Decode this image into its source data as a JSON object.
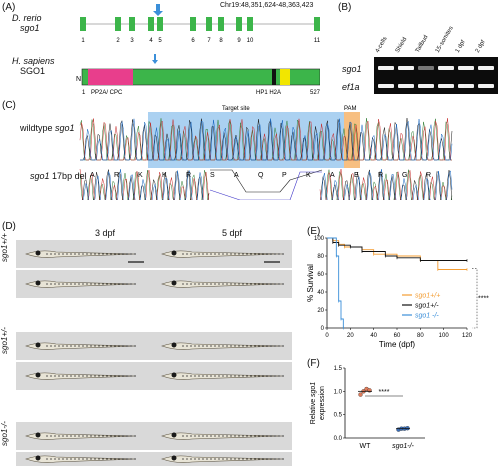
{
  "panels": {
    "A": "(A)",
    "B": "(B)",
    "C": "(C)",
    "D": "(D)",
    "E": "(E)",
    "F": "(F)"
  },
  "panelA": {
    "species1": "D. rerio",
    "gene1": "sgo1",
    "chr": "Chr19:48,351,624-48,363,423",
    "exons": [
      "1",
      "2",
      "3",
      "4",
      "5",
      "6",
      "7",
      "8",
      "9",
      "10",
      "11"
    ],
    "species2": "H. sapiens",
    "gene2": "SGO1",
    "protein_start": "N",
    "protein_end": "C",
    "pos_start": "1",
    "pos_end": "527",
    "domain1": "PP2A/ CPC",
    "domain2": "HP1 H2A",
    "colors": {
      "exon": "#3cb54a",
      "pp2a": "#e83e8c",
      "hp1": "#111111",
      "h2a": "#f2e600",
      "arrow": "#3b8fd9"
    }
  },
  "panelB": {
    "lanes": [
      "4-cells",
      "Shield",
      "Tailbud",
      "15-somites",
      "1 dpf",
      "2 dpf"
    ],
    "rows": [
      "sgo1",
      "ef1a"
    ]
  },
  "panelC": {
    "target_site": "Target site",
    "pam": "PAM",
    "wt_label": "wildtype",
    "wt_gene": "sgo1",
    "mut_gene": "sgo1",
    "mut_label": "17bp del",
    "wt_aa": [
      "A",
      "R",
      "K",
      "K",
      "R",
      "S",
      "A",
      "Q",
      "P",
      "K",
      "A",
      "E",
      "R",
      "G",
      "R"
    ],
    "mut_aa": [
      "A",
      "R",
      "K",
      "K",
      "S",
      "G",
      "A",
      "R",
      "P",
      "Q"
    ]
  },
  "panelD": {
    "col1": "3 dpf",
    "col2": "5 dpf",
    "genotypes": [
      "sgo1+/+",
      "sgo1+/-",
      "sgo1-/-"
    ]
  },
  "chart_data": [
    {
      "type": "line",
      "panel": "E",
      "xlabel": "Time (dpf)",
      "ylabel": "% Survival",
      "xlim": [
        0,
        120
      ],
      "ylim": [
        0,
        100
      ],
      "xticks": [
        0,
        20,
        40,
        60,
        80,
        100,
        120
      ],
      "yticks": [
        0,
        20,
        40,
        60,
        80,
        100
      ],
      "legend_position": "bottom-right",
      "significance": "****",
      "series": [
        {
          "name": "sgo1+/+",
          "color": "#f39c32",
          "x": [
            0,
            5,
            10,
            15,
            30,
            40,
            60,
            80,
            95,
            120
          ],
          "y": [
            100,
            97,
            93,
            90,
            87,
            82,
            80,
            75,
            65,
            65
          ]
        },
        {
          "name": "sgo1+/-",
          "color": "#111111",
          "x": [
            0,
            5,
            10,
            20,
            30,
            50,
            60,
            80,
            120
          ],
          "y": [
            100,
            95,
            92,
            90,
            85,
            80,
            78,
            75,
            75
          ]
        },
        {
          "name": "sgo1 -/-",
          "color": "#3b8fd9",
          "x": [
            0,
            8,
            10,
            12,
            14
          ],
          "y": [
            100,
            80,
            30,
            10,
            0
          ]
        }
      ]
    },
    {
      "type": "scatter",
      "panel": "F",
      "ylabel_prefix": "Relative ",
      "ylabel_gene": "sgo1",
      "ylabel_suffix": "expression",
      "categories": [
        "WT",
        "sgo1-/-"
      ],
      "ylim": [
        0,
        1.5
      ],
      "yticks": [
        0.0,
        0.5,
        1.0,
        1.5
      ],
      "significance": "****",
      "series": [
        {
          "name": "WT",
          "color": "#e07b5a",
          "values": [
            0.93,
            1.0,
            1.05,
            1.02
          ]
        },
        {
          "name": "sgo1-/-",
          "color": "#3b6fb8",
          "values": [
            0.18,
            0.2,
            0.2,
            0.21
          ]
        }
      ],
      "means": [
        1.0,
        0.2
      ]
    }
  ]
}
